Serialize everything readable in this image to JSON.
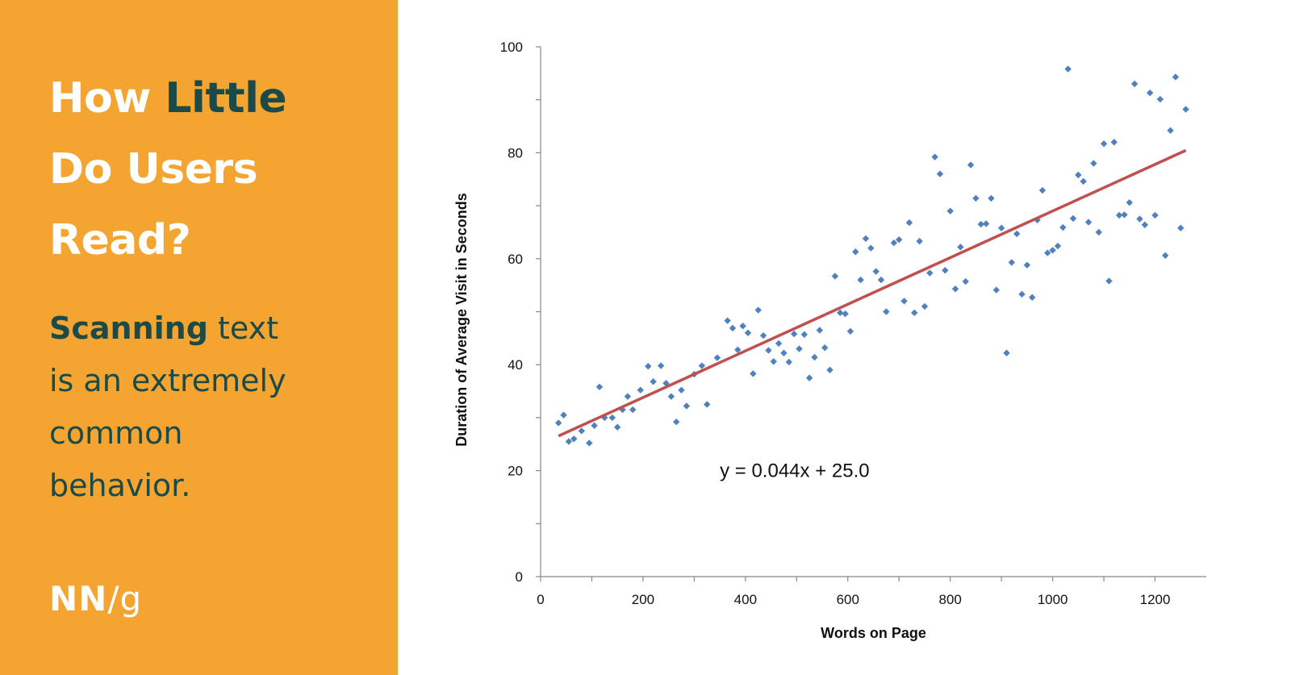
{
  "panel": {
    "title_prefix": "How ",
    "title_accent": "Little",
    "title_line2": "Do Users",
    "title_line3": "Read?",
    "sub_strong": "Scanning",
    "sub_rest1": " text",
    "sub_line2": "is an extremely",
    "sub_line3": "common",
    "sub_line4": "behavior.",
    "logo_nn": "NN",
    "logo_slash": "/",
    "logo_g": "g",
    "bg_color": "#F4A531",
    "accent_color": "#1B4A47"
  },
  "chart_data": {
    "type": "scatter",
    "xlabel": "Words on Page",
    "ylabel": "Duration of Average Visit in Seconds",
    "xlim": [
      0,
      1300
    ],
    "ylim": [
      0,
      100
    ],
    "xticks": [
      0,
      200,
      400,
      600,
      800,
      1000,
      1200
    ],
    "yticks": [
      0,
      20,
      40,
      60,
      80,
      100
    ],
    "grid": false,
    "point_color": "#4F81BD",
    "trendline": {
      "slope": 0.044,
      "intercept": 25.0,
      "x_range": [
        35,
        1260
      ],
      "color": "#C0504D",
      "label": "y = 0.044x + 25.0",
      "label_position": [
        350,
        20
      ]
    },
    "points": [
      [
        35,
        29
      ],
      [
        45,
        30.5
      ],
      [
        55,
        25.5
      ],
      [
        65,
        26
      ],
      [
        80,
        27.5
      ],
      [
        95,
        25.2
      ],
      [
        105,
        28.5
      ],
      [
        115,
        35.8
      ],
      [
        125,
        30
      ],
      [
        140,
        30
      ],
      [
        150,
        28.2
      ],
      [
        160,
        31.5
      ],
      [
        170,
        34
      ],
      [
        180,
        31.5
      ],
      [
        195,
        35.2
      ],
      [
        210,
        39.7
      ],
      [
        220,
        36.8
      ],
      [
        235,
        39.8
      ],
      [
        245,
        36.5
      ],
      [
        255,
        34
      ],
      [
        265,
        29.2
      ],
      [
        275,
        35.2
      ],
      [
        285,
        32.2
      ],
      [
        300,
        38.2
      ],
      [
        315,
        39.8
      ],
      [
        325,
        32.5
      ],
      [
        345,
        41.3
      ],
      [
        365,
        48.3
      ],
      [
        375,
        46.9
      ],
      [
        385,
        42.8
      ],
      [
        395,
        47.3
      ],
      [
        405,
        46
      ],
      [
        415,
        38.3
      ],
      [
        425,
        50.3
      ],
      [
        435,
        45.5
      ],
      [
        445,
        42.7
      ],
      [
        455,
        40.6
      ],
      [
        465,
        44
      ],
      [
        475,
        42.2
      ],
      [
        485,
        40.5
      ],
      [
        495,
        45.8
      ],
      [
        505,
        43
      ],
      [
        515,
        45.7
      ],
      [
        525,
        37.5
      ],
      [
        535,
        41.4
      ],
      [
        545,
        46.5
      ],
      [
        555,
        43.2
      ],
      [
        565,
        39
      ],
      [
        575,
        56.7
      ],
      [
        585,
        49.8
      ],
      [
        595,
        49.6
      ],
      [
        605,
        46.3
      ],
      [
        615,
        61.3
      ],
      [
        625,
        56
      ],
      [
        635,
        63.8
      ],
      [
        645,
        62
      ],
      [
        655,
        57.6
      ],
      [
        665,
        56
      ],
      [
        675,
        50
      ],
      [
        690,
        63
      ],
      [
        700,
        63.6
      ],
      [
        710,
        52
      ],
      [
        720,
        66.8
      ],
      [
        730,
        49.8
      ],
      [
        740,
        63.3
      ],
      [
        750,
        51
      ],
      [
        760,
        57.3
      ],
      [
        770,
        79.2
      ],
      [
        780,
        76
      ],
      [
        790,
        57.8
      ],
      [
        800,
        69
      ],
      [
        810,
        54.3
      ],
      [
        820,
        62.2
      ],
      [
        830,
        55.7
      ],
      [
        840,
        77.7
      ],
      [
        850,
        71.4
      ],
      [
        860,
        66.5
      ],
      [
        870,
        66.6
      ],
      [
        880,
        71.4
      ],
      [
        890,
        54.1
      ],
      [
        900,
        65.8
      ],
      [
        910,
        42.2
      ],
      [
        920,
        59.3
      ],
      [
        930,
        64.7
      ],
      [
        940,
        53.3
      ],
      [
        950,
        58.8
      ],
      [
        960,
        52.7
      ],
      [
        970,
        67.3
      ],
      [
        980,
        72.9
      ],
      [
        990,
        61.1
      ],
      [
        1000,
        61.6
      ],
      [
        1010,
        62.4
      ],
      [
        1020,
        65.9
      ],
      [
        1030,
        95.8
      ],
      [
        1040,
        67.6
      ],
      [
        1050,
        75.8
      ],
      [
        1060,
        74.6
      ],
      [
        1070,
        66.9
      ],
      [
        1080,
        78
      ],
      [
        1090,
        65
      ],
      [
        1100,
        81.7
      ],
      [
        1110,
        55.8
      ],
      [
        1120,
        82
      ],
      [
        1130,
        68.2
      ],
      [
        1140,
        68.3
      ],
      [
        1150,
        70.6
      ],
      [
        1160,
        93
      ],
      [
        1170,
        67.5
      ],
      [
        1180,
        66.4
      ],
      [
        1190,
        91.3
      ],
      [
        1200,
        68.2
      ],
      [
        1210,
        90.1
      ],
      [
        1220,
        60.6
      ],
      [
        1230,
        84.2
      ],
      [
        1240,
        94.3
      ],
      [
        1250,
        65.8
      ],
      [
        1260,
        88.2
      ]
    ]
  }
}
